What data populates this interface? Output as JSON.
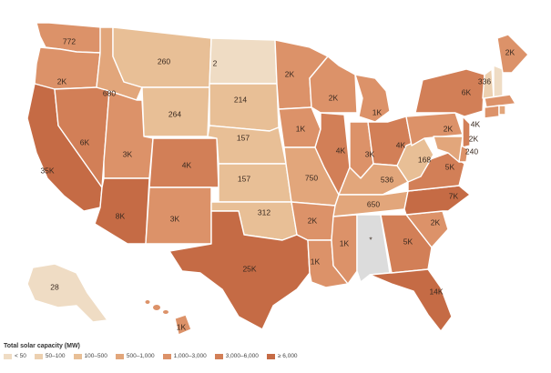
{
  "legend": {
    "title": "Total solar capacity (MW)",
    "items": [
      {
        "label": "< 50",
        "color": "#efdcc4"
      },
      {
        "label": "50–100",
        "color": "#ecd0b0"
      },
      {
        "label": "100–500",
        "color": "#e8bf96"
      },
      {
        "label": "500–1,000",
        "color": "#e2a67b"
      },
      {
        "label": "1,000–3,000",
        "color": "#dc9269"
      },
      {
        "label": "3,000–6,000",
        "color": "#d27f57"
      },
      {
        "label": "≥ 6,000",
        "color": "#c56b45"
      }
    ],
    "no_data_color": "#dcdcdc"
  },
  "states": {
    "WA": "772",
    "OR": "2K",
    "CA": "35K",
    "NV": "6K",
    "ID": "680",
    "MT": "260",
    "WY": "264",
    "UT": "3K",
    "AZ": "8K",
    "CO": "4K",
    "NM": "3K",
    "ND": "2",
    "SD": "214",
    "NE": "157",
    "KS": "157",
    "OK": "312",
    "TX": "25K",
    "MN": "2K",
    "IA": "1K",
    "MO": "750",
    "AR": "2K",
    "LA": "1K",
    "WI": "2K",
    "IL": "4K",
    "MI": "1K",
    "IN": "3K",
    "OH": "4K",
    "KY": "536",
    "TN": "650",
    "MS": "1K",
    "AL": "*",
    "GA": "5K",
    "FL": "14K",
    "SC": "2K",
    "NC": "7K",
    "VA": "5K",
    "WV": "168",
    "PA": "2K",
    "NY": "6K",
    "NJ": "4K",
    "DE": "2K",
    "MD": "240",
    "VT": "336",
    "NH": "",
    "ME": "2K",
    "MA": "",
    "CT": "",
    "RI": "",
    "AK": "28",
    "HI": "1K"
  }
}
